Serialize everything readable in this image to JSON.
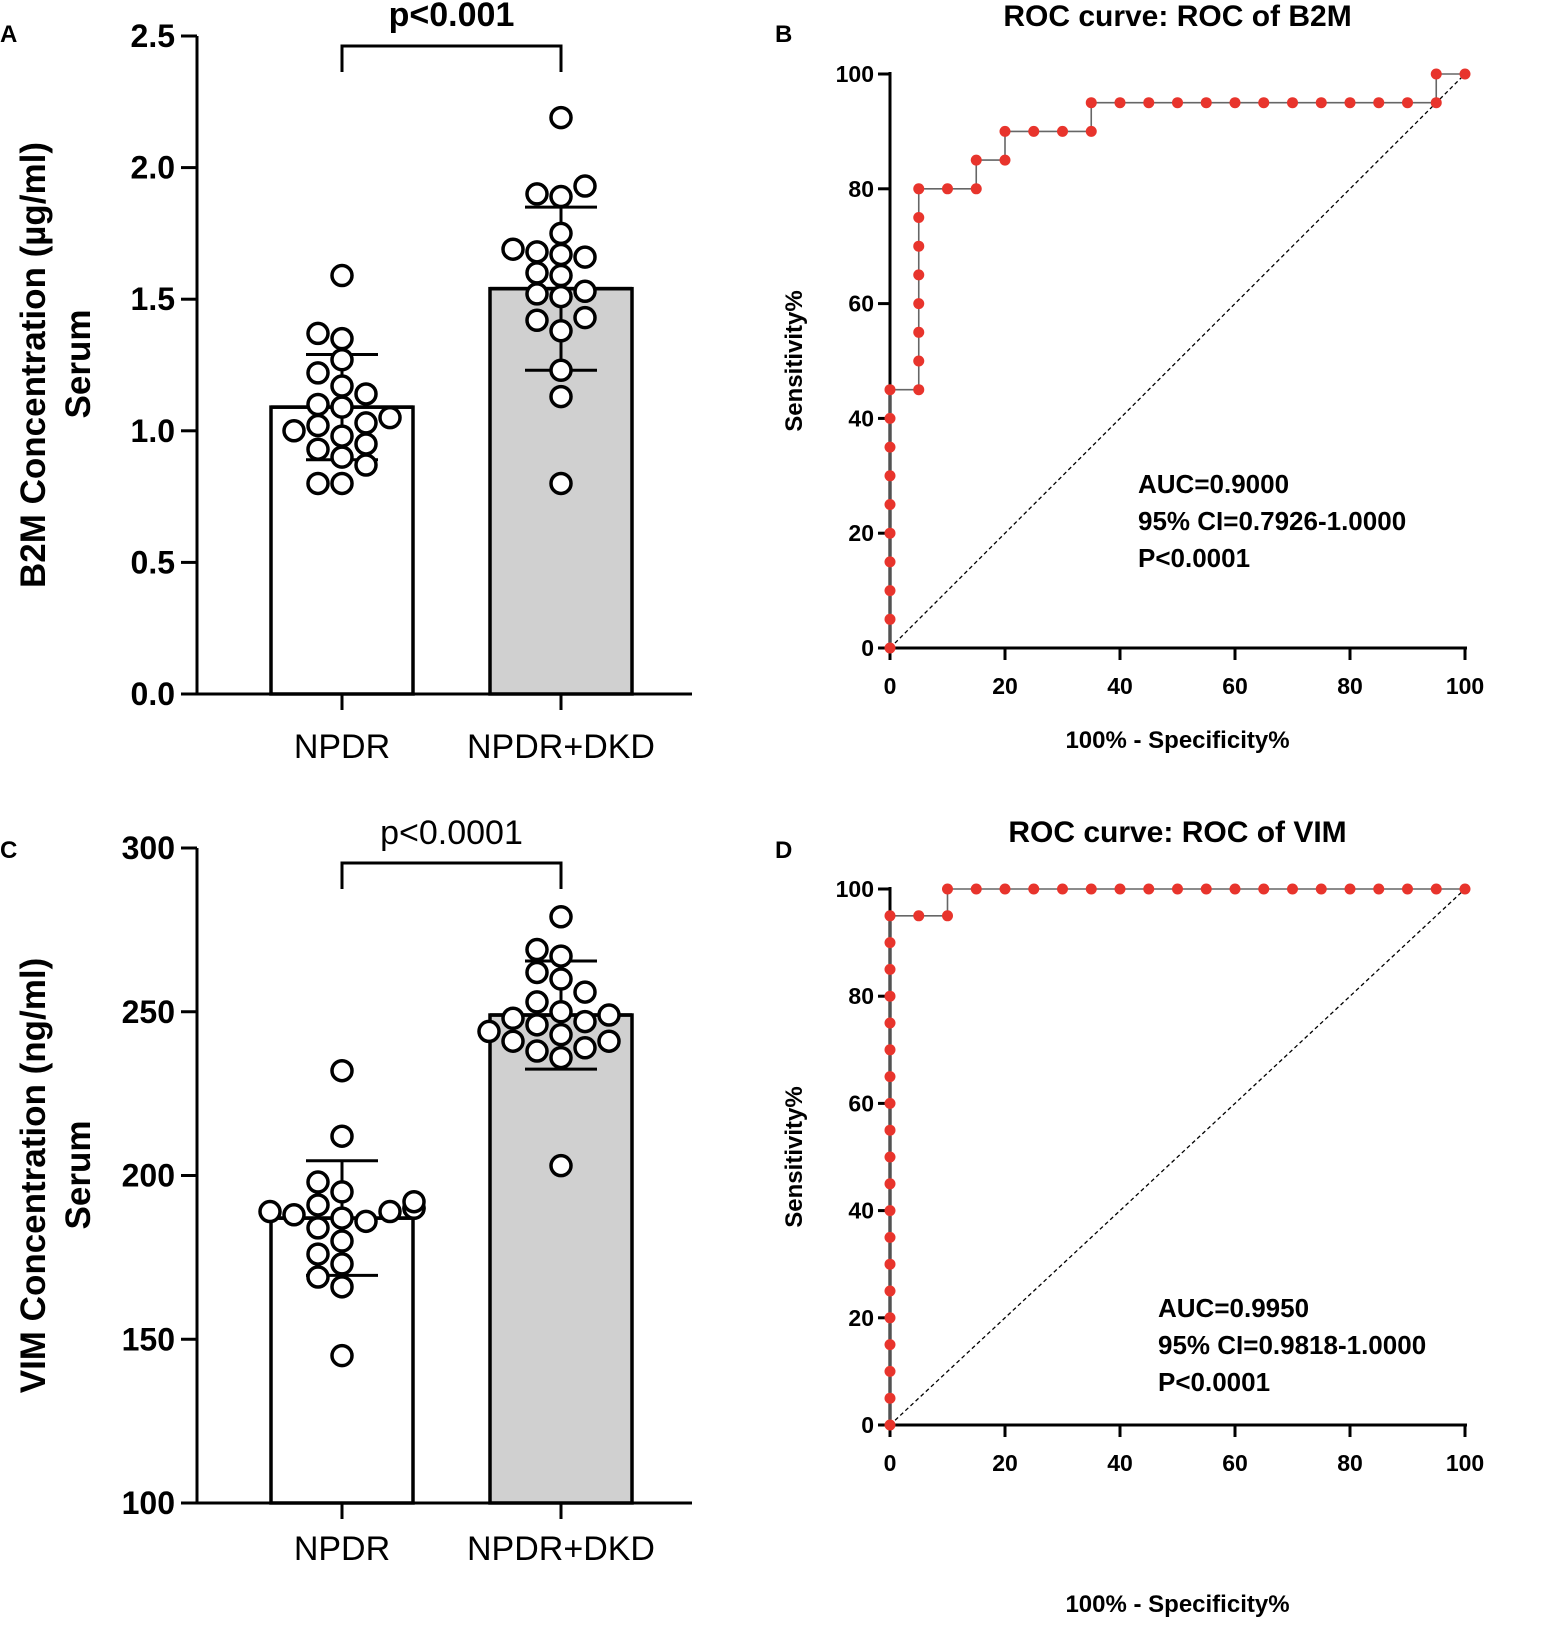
{
  "chart_data": [
    {
      "panel": "A",
      "type": "bar",
      "title": "",
      "ylabel": "B2M Concentration (µg/ml)",
      "ylabel2": "Serum",
      "xlabel": "",
      "categories": [
        "NPDR",
        "NPDR+DKD"
      ],
      "values": [
        1.09,
        1.54
      ],
      "sd": [
        0.2,
        0.31
      ],
      "bar_colors": [
        "#ffffff",
        "#d0d0d0"
      ],
      "ylim": [
        0,
        2.5
      ],
      "yticks": [
        0.0,
        0.5,
        1.0,
        1.5,
        2.0,
        2.5
      ],
      "ytick_labels": [
        "0.0",
        "0.5",
        "1.0",
        "1.5",
        "2.0",
        "2.5"
      ],
      "significance": "p<0.001",
      "significance_bold": true,
      "points": [
        [
          0.8,
          0.8,
          0.87,
          0.9,
          0.93,
          0.95,
          0.98,
          1.0,
          1.02,
          1.03,
          1.05,
          1.09,
          1.1,
          1.14,
          1.17,
          1.22,
          1.27,
          1.35,
          1.37,
          1.59
        ],
        [
          0.8,
          1.13,
          1.23,
          1.38,
          1.42,
          1.43,
          1.51,
          1.52,
          1.53,
          1.59,
          1.6,
          1.66,
          1.67,
          1.68,
          1.69,
          1.75,
          1.89,
          1.9,
          1.93,
          2.19
        ]
      ]
    },
    {
      "panel": "B",
      "type": "line",
      "title": "ROC curve: ROC of B2M",
      "xlabel": "100% - Specificity%",
      "ylabel": "Sensitivity%",
      "xlim": [
        0,
        100
      ],
      "ylim": [
        0,
        100
      ],
      "xticks": [
        0,
        20,
        40,
        60,
        80,
        100
      ],
      "yticks": [
        0,
        20,
        40,
        60,
        80,
        100
      ],
      "x": [
        0,
        0,
        0,
        0,
        0,
        0,
        0,
        0,
        0,
        0,
        5,
        5,
        5,
        5,
        5,
        5,
        5,
        5,
        10,
        15,
        15,
        20,
        20,
        25,
        30,
        35,
        35,
        40,
        45,
        50,
        55,
        60,
        65,
        70,
        75,
        80,
        85,
        90,
        95,
        95,
        100
      ],
      "y": [
        0,
        5,
        10,
        15,
        20,
        25,
        30,
        35,
        40,
        45,
        45,
        50,
        55,
        60,
        65,
        70,
        75,
        80,
        80,
        80,
        85,
        85,
        90,
        90,
        90,
        90,
        95,
        95,
        95,
        95,
        95,
        95,
        95,
        95,
        95,
        95,
        95,
        95,
        95,
        100,
        100
      ],
      "line_color": "#666666",
      "marker_color": "#e8342c",
      "stats": [
        "AUC=0.9000",
        "95% CI=0.7926-1.0000",
        "P<0.0001"
      ]
    },
    {
      "panel": "C",
      "type": "bar",
      "title": "",
      "ylabel": "VIM Concentration (ng/ml)",
      "ylabel2": "Serum",
      "xlabel": "",
      "categories": [
        "NPDR",
        "NPDR+DKD"
      ],
      "values": [
        187,
        249
      ],
      "sd": [
        17.5,
        16.5
      ],
      "bar_colors": [
        "#ffffff",
        "#d0d0d0"
      ],
      "ylim": [
        100,
        300
      ],
      "yticks": [
        100,
        150,
        200,
        250,
        300
      ],
      "ytick_labels": [
        "100",
        "150",
        "200",
        "250",
        "300"
      ],
      "significance": "p<0.0001",
      "significance_bold": false,
      "points": [
        [
          145,
          166,
          169,
          173,
          176,
          180,
          184,
          186,
          187,
          188,
          189,
          189,
          190,
          190,
          191,
          192,
          195,
          198,
          212,
          232
        ],
        [
          203,
          236,
          238,
          239,
          241,
          241,
          243,
          244,
          246,
          247,
          248,
          249,
          250,
          253,
          256,
          260,
          262,
          267,
          269,
          279
        ]
      ]
    },
    {
      "panel": "D",
      "type": "line",
      "title": "ROC curve: ROC of VIM",
      "xlabel": "100% - Specificity%",
      "ylabel": "Sensitivity%",
      "xlim": [
        0,
        100
      ],
      "ylim": [
        0,
        100
      ],
      "xticks": [
        0,
        20,
        40,
        60,
        80,
        100
      ],
      "yticks": [
        0,
        20,
        40,
        60,
        80,
        100
      ],
      "x": [
        0,
        0,
        0,
        0,
        0,
        0,
        0,
        0,
        0,
        0,
        0,
        0,
        0,
        0,
        0,
        0,
        0,
        0,
        0,
        0,
        5,
        10,
        10,
        15,
        20,
        25,
        30,
        35,
        40,
        45,
        50,
        55,
        60,
        65,
        70,
        75,
        80,
        85,
        90,
        95,
        100
      ],
      "y": [
        0,
        5,
        10,
        15,
        20,
        25,
        30,
        35,
        40,
        45,
        50,
        55,
        60,
        65,
        70,
        75,
        80,
        85,
        90,
        95,
        95,
        95,
        100,
        100,
        100,
        100,
        100,
        100,
        100,
        100,
        100,
        100,
        100,
        100,
        100,
        100,
        100,
        100,
        100,
        100,
        100
      ],
      "line_color": "#666666",
      "marker_color": "#e8342c",
      "stats": [
        "AUC=0.9950",
        "95% CI=0.9818-1.0000",
        "P<0.0001"
      ]
    }
  ]
}
